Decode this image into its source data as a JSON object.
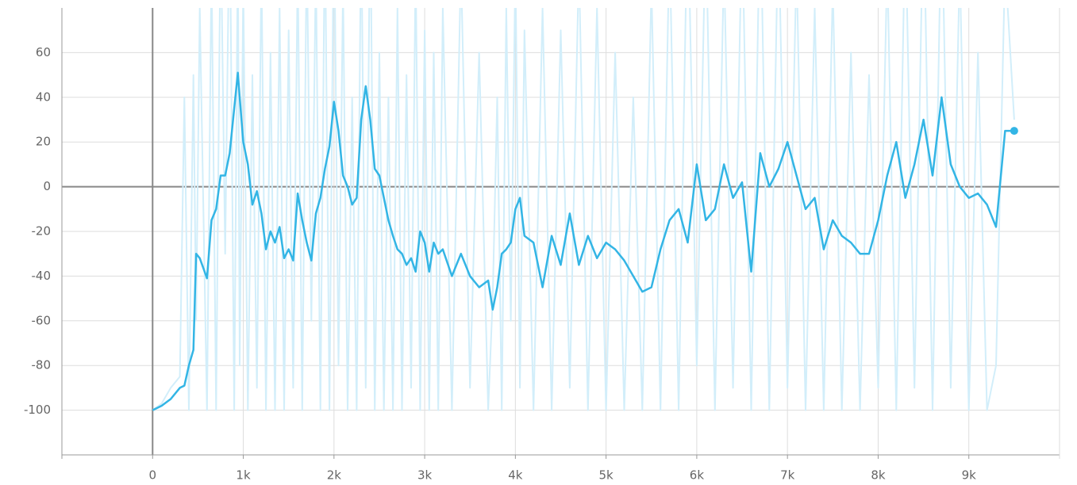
{
  "chart_data": {
    "type": "line",
    "x": [
      0,
      100,
      200,
      300,
      350,
      400,
      450,
      480,
      520,
      600,
      650,
      700,
      750,
      800,
      850,
      900,
      940,
      960,
      1000,
      1050,
      1100,
      1150,
      1200,
      1250,
      1300,
      1350,
      1400,
      1450,
      1500,
      1550,
      1600,
      1650,
      1700,
      1750,
      1800,
      1850,
      1900,
      1950,
      2000,
      2050,
      2100,
      2150,
      2200,
      2250,
      2300,
      2350,
      2400,
      2450,
      2500,
      2550,
      2600,
      2650,
      2700,
      2750,
      2800,
      2850,
      2900,
      2950,
      3000,
      3050,
      3100,
      3150,
      3200,
      3300,
      3400,
      3500,
      3600,
      3700,
      3750,
      3800,
      3850,
      3900,
      3950,
      4000,
      4050,
      4100,
      4200,
      4300,
      4400,
      4500,
      4600,
      4700,
      4800,
      4900,
      5000,
      5100,
      5200,
      5300,
      5400,
      5500,
      5600,
      5700,
      5800,
      5900,
      6000,
      6100,
      6200,
      6300,
      6400,
      6500,
      6600,
      6700,
      6800,
      6900,
      7000,
      7100,
      7200,
      7300,
      7400,
      7500,
      7600,
      7700,
      7800,
      7900,
      8000,
      8100,
      8200,
      8300,
      8400,
      8500,
      8600,
      8700,
      8800,
      8900,
      9000,
      9100,
      9200,
      9300,
      9400,
      9500
    ],
    "series": [
      {
        "color": "#d2eefa",
        "values": [
          -100,
          -97,
          -90,
          -85,
          40,
          -100,
          50,
          -60,
          80,
          -100,
          100,
          -100,
          120,
          -30,
          130,
          -100,
          110,
          -80,
          90,
          -100,
          50,
          -90,
          100,
          -100,
          60,
          -100,
          80,
          -100,
          70,
          -90,
          100,
          -100,
          110,
          -60,
          100,
          -100,
          120,
          -100,
          130,
          -80,
          90,
          -100,
          40,
          -100,
          120,
          -90,
          130,
          -100,
          60,
          -100,
          40,
          -100,
          80,
          -100,
          50,
          -90,
          100,
          -100,
          70,
          -100,
          60,
          -100,
          80,
          -100,
          100,
          -90,
          60,
          -100,
          -50,
          40,
          -100,
          80,
          -60,
          100,
          -90,
          70,
          -100,
          80,
          -100,
          70,
          -90,
          100,
          -100,
          80,
          -100,
          60,
          -100,
          40,
          -100,
          90,
          -100,
          110,
          -100,
          130,
          -80,
          120,
          -100,
          100,
          -90,
          120,
          -100,
          130,
          -100,
          120,
          -90,
          100,
          -100,
          80,
          -100,
          90,
          -100,
          60,
          -100,
          50,
          -90,
          100,
          -100,
          120,
          -90,
          130,
          -100,
          130,
          -90,
          100,
          -100,
          60,
          -100,
          -80,
          100,
          30
        ]
      },
      {
        "color": "#33b5e5",
        "values": [
          -100,
          -98,
          -95,
          -90,
          -89,
          -80,
          -73,
          -30,
          -32,
          -41,
          -15,
          -10,
          5,
          5,
          15,
          35,
          51,
          40,
          20,
          10,
          -8,
          -2,
          -12,
          -28,
          -20,
          -25,
          -18,
          -32,
          -28,
          -33,
          -3,
          -15,
          -25,
          -33,
          -12,
          -5,
          8,
          18,
          38,
          25,
          5,
          0,
          -8,
          -5,
          30,
          45,
          30,
          8,
          5,
          -5,
          -15,
          -22,
          -28,
          -30,
          -35,
          -32,
          -38,
          -20,
          -25,
          -38,
          -25,
          -30,
          -28,
          -40,
          -30,
          -40,
          -45,
          -42,
          -55,
          -45,
          -30,
          -28,
          -25,
          -10,
          -5,
          -22,
          -25,
          -45,
          -22,
          -35,
          -12,
          -35,
          -22,
          -32,
          -25,
          -28,
          -33,
          -40,
          -47,
          -45,
          -28,
          -15,
          -10,
          -25,
          10,
          -15,
          -10,
          10,
          -5,
          2,
          -38,
          15,
          0,
          8,
          20,
          5,
          -10,
          -5,
          -28,
          -15,
          -22,
          -25,
          -30,
          -30,
          -15,
          5,
          20,
          -5,
          10,
          30,
          5,
          40,
          10,
          0,
          -5,
          -3,
          -8,
          -18,
          25,
          25
        ]
      }
    ],
    "xlim": [
      -1000,
      10000
    ],
    "xticks": [
      0,
      {
        "value": 1000,
        "label": "1k"
      },
      {
        "value": 2000,
        "label": "2k"
      },
      {
        "value": 3000,
        "label": "3k"
      },
      {
        "value": 4000,
        "label": "4k"
      },
      {
        "value": 5000,
        "label": "5k"
      },
      {
        "value": 6000,
        "label": "6k"
      },
      {
        "value": 7000,
        "label": "7k"
      },
      {
        "value": 8000,
        "label": "8k"
      },
      {
        "value": 9000,
        "label": "9k"
      }
    ],
    "ylim": [
      -120,
      80
    ],
    "yticks": [
      -100,
      -80,
      -60,
      -40,
      -20,
      0,
      20,
      40,
      60
    ],
    "grid": true
  }
}
